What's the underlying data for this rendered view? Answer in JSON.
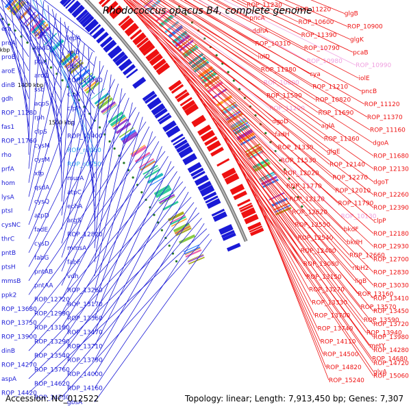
{
  "title": "Rhodococcus opacus B4, complete genome",
  "footer": {
    "accession": "Accession: NC_012522",
    "summary": "Topology: linear; Length: 7,913,450 bp; Genes: 7,307"
  },
  "scale_labels": [
    "1000 kbp",
    "1100 kbp",
    "1200 kbp",
    "1300 kbp",
    "1400 kbp",
    "1500 kbp"
  ],
  "colors": {
    "forward": "#ee1111",
    "reverse": "#1a1ad6",
    "rna": "#f0a0e0",
    "highlight": "#33aaee",
    "backbone": "#888888",
    "tick": "#227722"
  },
  "left_labels": [
    {
      "text": "era",
      "color": "reverse"
    },
    {
      "text": "sigL",
      "color": "reverse"
    },
    {
      "text": "lepA",
      "color": "reverse"
    },
    {
      "text": "proA",
      "color": "reverse"
    },
    {
      "text": "nadD",
      "color": "reverse"
    },
    {
      "text": "rplU",
      "color": "reverse"
    },
    {
      "text": "proB",
      "color": "reverse"
    },
    {
      "text": "pcaJ",
      "color": "reverse"
    },
    {
      "text": "ndk",
      "color": "reverse"
    },
    {
      "text": "aroE",
      "color": "reverse"
    },
    {
      "text": "aroQ",
      "color": "reverse"
    },
    {
      "text": "ROP_10780",
      "color": "reverse"
    },
    {
      "text": "dinB",
      "color": "reverse"
    },
    {
      "text": "ssb",
      "color": "reverse"
    },
    {
      "text": "clpX",
      "color": "reverse"
    },
    {
      "text": "gdh",
      "color": "reverse"
    },
    {
      "text": "acpS",
      "color": "reverse"
    },
    {
      "text": "clpP",
      "color": "reverse"
    },
    {
      "text": "ROP_11280",
      "color": "reverse"
    },
    {
      "text": "rph",
      "color": "reverse"
    },
    {
      "text": "tig",
      "color": "reverse"
    },
    {
      "text": "fas1",
      "color": "reverse"
    },
    {
      "text": "clpS",
      "color": "reverse"
    },
    {
      "text": "ROP_11400",
      "color": "reverse"
    },
    {
      "text": "ROP_11760",
      "color": "reverse"
    },
    {
      "text": "cysM",
      "color": "reverse"
    },
    {
      "text": "ROP_r0060",
      "color": "highlight"
    },
    {
      "text": "rho",
      "color": "reverse"
    },
    {
      "text": "cysM",
      "color": "reverse"
    },
    {
      "text": "ROP_r0050",
      "color": "highlight"
    },
    {
      "text": "prfA",
      "color": "reverse"
    },
    {
      "text": "xfp",
      "color": "reverse"
    },
    {
      "text": "murA",
      "color": "reverse"
    },
    {
      "text": "hom",
      "color": "reverse"
    },
    {
      "text": "qsdA",
      "color": "reverse"
    },
    {
      "text": "atpC",
      "color": "reverse"
    },
    {
      "text": "lysA",
      "color": "reverse"
    },
    {
      "text": "cysQ",
      "color": "reverse"
    },
    {
      "text": "echA",
      "color": "reverse"
    },
    {
      "text": "ptsI",
      "color": "reverse"
    },
    {
      "text": "atpD",
      "color": "reverse"
    },
    {
      "text": "argS",
      "color": "reverse"
    },
    {
      "text": "cysNC",
      "color": "reverse"
    },
    {
      "text": "fadE",
      "color": "reverse"
    },
    {
      "text": "ROP_12820",
      "color": "reverse"
    },
    {
      "text": "thrC",
      "color": "reverse"
    },
    {
      "text": "cysD",
      "color": "reverse"
    },
    {
      "text": "mmsA",
      "color": "reverse"
    },
    {
      "text": "pntB",
      "color": "reverse"
    },
    {
      "text": "fabG",
      "color": "reverse"
    },
    {
      "text": "fabF",
      "color": "reverse"
    },
    {
      "text": "ptsH",
      "color": "reverse"
    },
    {
      "text": "pntAB",
      "color": "reverse"
    },
    {
      "text": "vdh",
      "color": "reverse"
    },
    {
      "text": "mmsB",
      "color": "reverse"
    },
    {
      "text": "pntAA",
      "color": "reverse"
    },
    {
      "text": "ROP_13260",
      "color": "reverse"
    },
    {
      "text": "ppk2",
      "color": "reverse"
    },
    {
      "text": "ROP_12720",
      "color": "reverse"
    },
    {
      "text": "ROP_13170",
      "color": "reverse"
    },
    {
      "text": "ROP_13680",
      "color": "reverse"
    },
    {
      "text": "ROP_12990",
      "color": "reverse"
    },
    {
      "text": "ROP_13360",
      "color": "reverse"
    },
    {
      "text": "ROP_13750",
      "color": "reverse"
    },
    {
      "text": "ROP_13180",
      "color": "reverse"
    },
    {
      "text": "ROP_13470",
      "color": "reverse"
    },
    {
      "text": "ROP_13900",
      "color": "reverse"
    },
    {
      "text": "ROP_13290",
      "color": "reverse"
    },
    {
      "text": "ROP_13710",
      "color": "reverse"
    },
    {
      "text": "dinB",
      "color": "reverse"
    },
    {
      "text": "ROP_13540",
      "color": "reverse"
    },
    {
      "text": "ROP_13790",
      "color": "reverse"
    },
    {
      "text": "ROP_14270",
      "color": "reverse"
    },
    {
      "text": "ROP_13760",
      "color": "reverse"
    },
    {
      "text": "ROP_14000",
      "color": "reverse"
    },
    {
      "text": "aspA",
      "color": "reverse"
    },
    {
      "text": "ROP_14620",
      "color": "reverse"
    },
    {
      "text": "ROP_14160",
      "color": "reverse"
    },
    {
      "text": "ROP_14420",
      "color": "reverse"
    },
    {
      "text": "ROP_14730",
      "color": "reverse"
    },
    {
      "text": "gbsA",
      "color": "reverse"
    }
  ],
  "right_labels": [
    {
      "text": "ROP_11230",
      "color": "forward"
    },
    {
      "text": "ROP_11220",
      "color": "forward"
    },
    {
      "text": "glgB",
      "color": "forward"
    },
    {
      "text": "pncA",
      "color": "forward"
    },
    {
      "text": "ROP_10600",
      "color": "forward"
    },
    {
      "text": "ROP_10900",
      "color": "forward"
    },
    {
      "text": "ddhA",
      "color": "forward"
    },
    {
      "text": "ROP_11390",
      "color": "forward"
    },
    {
      "text": "glgK",
      "color": "forward"
    },
    {
      "text": "ROP_10310",
      "color": "forward"
    },
    {
      "text": "ROP_10790",
      "color": "forward"
    },
    {
      "text": "pcaB",
      "color": "forward"
    },
    {
      "text": "iolD",
      "color": "forward"
    },
    {
      "text": "ROP_10980",
      "color": "rna"
    },
    {
      "text": "ROP_10990",
      "color": "rna"
    },
    {
      "text": "ROP_11380",
      "color": "forward"
    },
    {
      "text": "cya",
      "color": "forward"
    },
    {
      "text": "iolE",
      "color": "forward"
    },
    {
      "text": "ROP_10800",
      "color": "rna"
    },
    {
      "text": "ROP_11210",
      "color": "forward"
    },
    {
      "text": "pncB",
      "color": "forward"
    },
    {
      "text": "ROP_11590",
      "color": "forward"
    },
    {
      "text": "ROP_10820",
      "color": "forward"
    },
    {
      "text": "ROP_11120",
      "color": "forward"
    },
    {
      "text": "ROP_11290",
      "color": "rna"
    },
    {
      "text": "ROP_11690",
      "color": "forward"
    },
    {
      "text": "ROP_11370",
      "color": "forward"
    },
    {
      "text": "dgoD",
      "color": "forward"
    },
    {
      "text": "aglA",
      "color": "forward"
    },
    {
      "text": "ROP_11160",
      "color": "forward"
    },
    {
      "text": "fadH",
      "color": "forward"
    },
    {
      "text": "ROP_11360",
      "color": "forward"
    },
    {
      "text": "dgoA",
      "color": "forward"
    },
    {
      "text": "ROP_11330",
      "color": "forward"
    },
    {
      "text": "glgE",
      "color": "forward"
    },
    {
      "text": "ROP_11680",
      "color": "forward"
    },
    {
      "text": "ROP_11530",
      "color": "forward"
    },
    {
      "text": "ROP_12140",
      "color": "forward"
    },
    {
      "text": "ROP_12130",
      "color": "forward"
    },
    {
      "text": "ROP_12020",
      "color": "forward"
    },
    {
      "text": "ROP_12270",
      "color": "forward"
    },
    {
      "text": "dgoT",
      "color": "forward"
    },
    {
      "text": "ROP_11770",
      "color": "forward"
    },
    {
      "text": "ROP_12010",
      "color": "forward"
    },
    {
      "text": "ROP_12260",
      "color": "forward"
    },
    {
      "text": "ROP_12120",
      "color": "forward"
    },
    {
      "text": "ROP_11790",
      "color": "forward"
    },
    {
      "text": "ROP_12390",
      "color": "forward"
    },
    {
      "text": "ROP_12620",
      "color": "forward"
    },
    {
      "text": "ROP_10130",
      "color": "rna"
    },
    {
      "text": "clpP",
      "color": "forward"
    },
    {
      "text": "ROP_12550",
      "color": "forward"
    },
    {
      "text": "bkdF",
      "color": "forward"
    },
    {
      "text": "ROP_12180",
      "color": "forward"
    },
    {
      "text": "ROP_12540",
      "color": "forward"
    },
    {
      "text": "bkdH",
      "color": "forward"
    },
    {
      "text": "ROP_12930",
      "color": "forward"
    },
    {
      "text": "ROP_12400",
      "color": "forward"
    },
    {
      "text": "ROP_12660",
      "color": "forward"
    },
    {
      "text": "ROP_12700",
      "color": "forward"
    },
    {
      "text": "ROP_13000",
      "color": "forward"
    },
    {
      "text": "ribH2",
      "color": "forward"
    },
    {
      "text": "ROP_12830",
      "color": "forward"
    },
    {
      "text": "ROP_13150",
      "color": "forward"
    },
    {
      "text": "ligB",
      "color": "forward"
    },
    {
      "text": "ROP_13030",
      "color": "forward"
    },
    {
      "text": "ROP_13270",
      "color": "forward"
    },
    {
      "text": "ROP_13160",
      "color": "forward"
    },
    {
      "text": "ROP_13410",
      "color": "forward"
    },
    {
      "text": "ROP_13330",
      "color": "forward"
    },
    {
      "text": "ROP_13570",
      "color": "forward"
    },
    {
      "text": "ROP_13450",
      "color": "forward"
    },
    {
      "text": "ROP_13700",
      "color": "forward"
    },
    {
      "text": "ROP_13590",
      "color": "forward"
    },
    {
      "text": "ROP_13720",
      "color": "forward"
    },
    {
      "text": "ROP_13740",
      "color": "forward"
    },
    {
      "text": "ROP_13940",
      "color": "forward"
    },
    {
      "text": "ROP_13980",
      "color": "forward"
    },
    {
      "text": "ROP_14110",
      "color": "forward"
    },
    {
      "text": "metY",
      "color": "forward"
    },
    {
      "text": "ROP_14280",
      "color": "forward"
    },
    {
      "text": "ROP_14500",
      "color": "forward"
    },
    {
      "text": "ROP_14680",
      "color": "forward"
    },
    {
      "text": "ROP_14720",
      "color": "forward"
    },
    {
      "text": "ROP_14820",
      "color": "forward"
    },
    {
      "text": "glyA",
      "color": "forward"
    },
    {
      "text": "ROP_15060",
      "color": "forward"
    },
    {
      "text": "ROP_15240",
      "color": "forward"
    }
  ]
}
